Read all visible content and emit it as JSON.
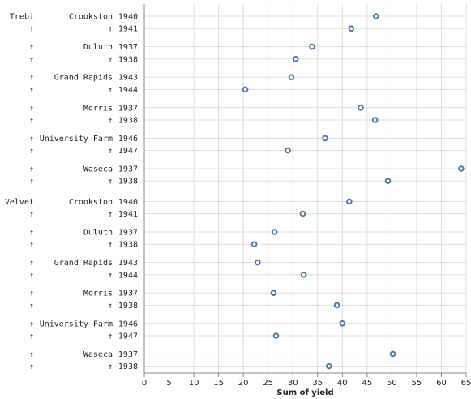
{
  "chart_data": {
    "type": "scatter",
    "xlabel": "Sum of yield",
    "xlim": [
      0,
      65
    ],
    "x_ticks": [
      0,
      5,
      10,
      15,
      20,
      25,
      30,
      35,
      40,
      45,
      50,
      55,
      60,
      65
    ],
    "grid": true,
    "marker": "open-circle",
    "marker_color": "#4c78a8",
    "groups": [
      {
        "variety": "Trebi",
        "rows": [
          {
            "variety_label": "Trebi",
            "site_label": "Crookston",
            "year": "1940",
            "value": 46.8
          },
          {
            "variety_label": "↑",
            "site_label": "↑",
            "year": "1941",
            "value": 41.8
          },
          {
            "variety_label": "↑",
            "site_label": "Duluth",
            "year": "1937",
            "value": 33.9
          },
          {
            "variety_label": "↑",
            "site_label": "↑",
            "year": "1938",
            "value": 30.6
          },
          {
            "variety_label": "↑",
            "site_label": "Grand Rapids",
            "year": "1943",
            "value": 29.7
          },
          {
            "variety_label": "↑",
            "site_label": "↑",
            "year": "1944",
            "value": 20.4
          },
          {
            "variety_label": "↑",
            "site_label": "Morris",
            "year": "1937",
            "value": 43.7
          },
          {
            "variety_label": "↑",
            "site_label": "↑",
            "year": "1938",
            "value": 46.6
          },
          {
            "variety_label": "↑",
            "site_label": "University Farm",
            "year": "1946",
            "value": 36.5
          },
          {
            "variety_label": "↑",
            "site_label": "↑",
            "year": "1947",
            "value": 29.0
          },
          {
            "variety_label": "↑",
            "site_label": "Waseca",
            "year": "1937",
            "value": 64.0
          },
          {
            "variety_label": "↑",
            "site_label": "↑",
            "year": "1938",
            "value": 49.2
          }
        ]
      },
      {
        "variety": "Velvet",
        "rows": [
          {
            "variety_label": "Velvet",
            "site_label": "Crookston",
            "year": "1940",
            "value": 41.4
          },
          {
            "variety_label": "↑",
            "site_label": "↑",
            "year": "1941",
            "value": 32.0
          },
          {
            "variety_label": "↑",
            "site_label": "Duluth",
            "year": "1937",
            "value": 26.3
          },
          {
            "variety_label": "↑",
            "site_label": "↑",
            "year": "1938",
            "value": 22.2
          },
          {
            "variety_label": "↑",
            "site_label": "Grand Rapids",
            "year": "1943",
            "value": 22.9
          },
          {
            "variety_label": "↑",
            "site_label": "↑",
            "year": "1944",
            "value": 32.2
          },
          {
            "variety_label": "↑",
            "site_label": "Morris",
            "year": "1937",
            "value": 26.1
          },
          {
            "variety_label": "↑",
            "site_label": "↑",
            "year": "1938",
            "value": 38.9
          },
          {
            "variety_label": "↑",
            "site_label": "University Farm",
            "year": "1946",
            "value": 40.0
          },
          {
            "variety_label": "↑",
            "site_label": "↑",
            "year": "1947",
            "value": 26.6
          },
          {
            "variety_label": "↑",
            "site_label": "Waseca",
            "year": "1937",
            "value": 50.2
          },
          {
            "variety_label": "↑",
            "site_label": "↑",
            "year": "1938",
            "value": 37.3
          }
        ]
      }
    ]
  }
}
